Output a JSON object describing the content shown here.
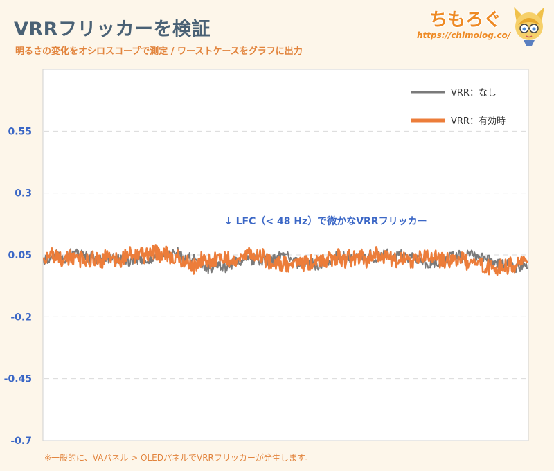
{
  "header": {
    "title": "VRRフリッカーを検証",
    "subtitle": "明るさの変化をオシロスコープで測定 / ワーストケースをグラフに出力"
  },
  "brand": {
    "name": "ちもろぐ",
    "url": "https://chimolog.co/"
  },
  "footnote": "※一般的に、VAパネル > OLEDパネルでVRRフリッカーが発生します。",
  "chart_data": {
    "type": "line",
    "ylim": [
      -0.7,
      0.8
    ],
    "yticks": [
      0.55,
      0.3,
      0.05,
      -0.2,
      -0.45,
      -0.7
    ],
    "ytick_labels": [
      "0.55",
      "0.3",
      "0.05",
      "-0.2",
      "-0.45",
      "-0.7"
    ],
    "grid": true,
    "legend": "top-right",
    "series": [
      {
        "name": "VRR：なし",
        "color": "#7a7a7a",
        "mean": 0.03,
        "amplitude": 0.03
      },
      {
        "name": "VRR：有効時",
        "color": "#ec7d3a",
        "mean": 0.03,
        "amplitude": 0.045
      }
    ],
    "annotation": "↓ LFC（< 48 Hz）で微かなVRRフリッカー"
  }
}
